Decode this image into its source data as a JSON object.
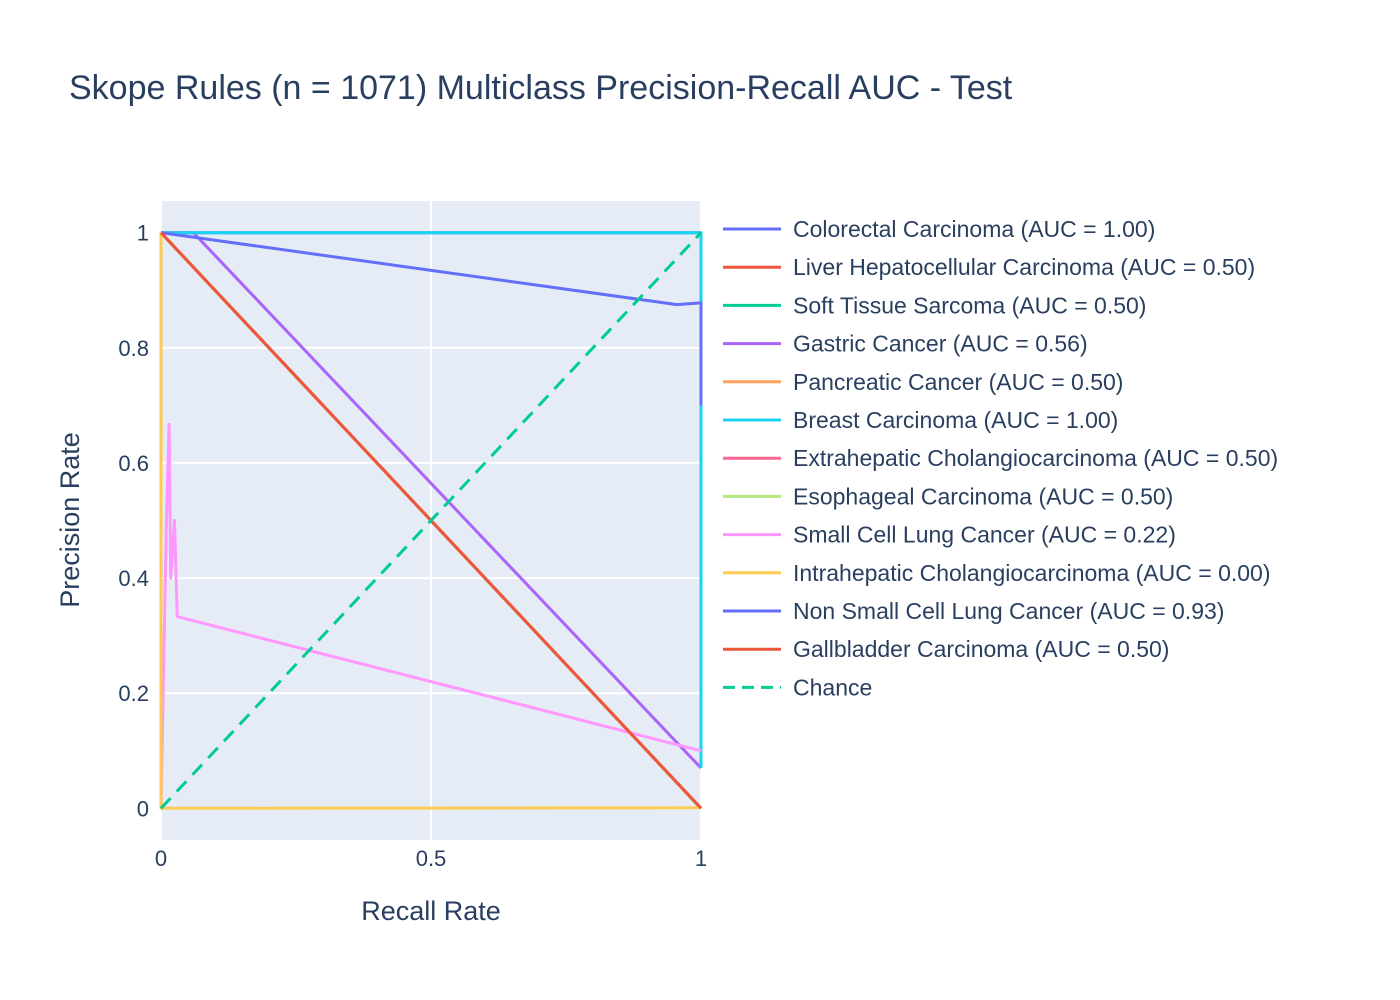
{
  "chart_data": {
    "type": "line",
    "title": "Skope Rules (n = 1071) Multiclass Precision-Recall AUC - Test",
    "xlabel": "Recall Rate",
    "ylabel": "Precision Rate",
    "xlim": [
      0,
      1
    ],
    "ylim": [
      -0.055,
      1.055
    ],
    "xticks": [
      0,
      0.5,
      1
    ],
    "xtick_labels": [
      "0",
      "0.5",
      "1"
    ],
    "yticks": [
      0,
      0.2,
      0.4,
      0.6,
      0.8,
      1
    ],
    "ytick_labels": [
      "0",
      "0.2",
      "0.4",
      "0.6",
      "0.8",
      "1"
    ],
    "grid": true,
    "legend_position": "right",
    "plot_background": "#e5ecf6",
    "series": [
      {
        "name": "Colorectal Carcinoma (AUC = 1.00)",
        "color": "#636efa",
        "dash": "solid",
        "points": [
          [
            0,
            1
          ],
          [
            1,
            1
          ]
        ]
      },
      {
        "name": "Liver Hepatocellular Carcinoma (AUC = 0.50)",
        "color": "#ef553b",
        "dash": "solid",
        "points": [
          [
            0,
            1
          ],
          [
            1,
            0
          ]
        ]
      },
      {
        "name": "Soft Tissue Sarcoma (AUC = 0.50)",
        "color": "#00cc96",
        "dash": "solid",
        "points": [
          [
            0,
            1
          ],
          [
            1,
            0
          ]
        ]
      },
      {
        "name": "Gastric Cancer (AUC = 0.56)",
        "color": "#ab63fa",
        "dash": "solid",
        "points": [
          [
            0,
            1
          ],
          [
            0.06,
            1
          ],
          [
            1,
            0.07
          ]
        ]
      },
      {
        "name": "Pancreatic Cancer (AUC = 0.50)",
        "color": "#ffa15a",
        "dash": "solid",
        "points": [
          [
            0,
            1
          ],
          [
            1,
            0
          ]
        ]
      },
      {
        "name": "Breast Carcinoma (AUC = 1.00)",
        "color": "#19d3f3",
        "dash": "solid",
        "points": [
          [
            0,
            1
          ],
          [
            1,
            1
          ],
          [
            1,
            0.07
          ]
        ]
      },
      {
        "name": "Extrahepatic Cholangiocarcinoma (AUC = 0.50)",
        "color": "#ff6692",
        "dash": "solid",
        "points": [
          [
            0,
            1
          ],
          [
            1,
            0
          ]
        ]
      },
      {
        "name": "Esophageal Carcinoma (AUC = 0.50)",
        "color": "#b6e880",
        "dash": "solid",
        "points": [
          [
            0,
            1
          ],
          [
            1,
            0
          ]
        ]
      },
      {
        "name": "Small Cell Lung Cancer (AUC = 0.22)",
        "color": "#ff97ff",
        "dash": "solid",
        "points": [
          [
            0,
            0
          ],
          [
            0.01,
            0.5
          ],
          [
            0.015,
            0.667
          ],
          [
            0.018,
            0.4
          ],
          [
            0.025,
            0.5
          ],
          [
            0.03,
            0.333
          ],
          [
            1,
            0.1
          ]
        ]
      },
      {
        "name": "Intrahepatic Cholangiocarcinoma (AUC = 0.00)",
        "color": "#fecb52",
        "dash": "solid",
        "points": [
          [
            0,
            1
          ],
          [
            0,
            0
          ],
          [
            1,
            0.001
          ]
        ]
      },
      {
        "name": "Non Small Cell Lung Cancer (AUC = 0.93)",
        "color": "#636efa",
        "dash": "solid",
        "points": [
          [
            0,
            1
          ],
          [
            0.955,
            0.875
          ],
          [
            1,
            0.878
          ],
          [
            1,
            0.7
          ]
        ]
      },
      {
        "name": "Gallbladder Carcinoma (AUC = 0.50)",
        "color": "#ef553b",
        "dash": "solid",
        "points": [
          [
            0,
            1
          ],
          [
            1,
            0
          ]
        ]
      },
      {
        "name": "Chance",
        "color": "#00cc96",
        "dash": "dash",
        "points": [
          [
            0,
            0
          ],
          [
            1,
            1
          ]
        ]
      }
    ]
  }
}
